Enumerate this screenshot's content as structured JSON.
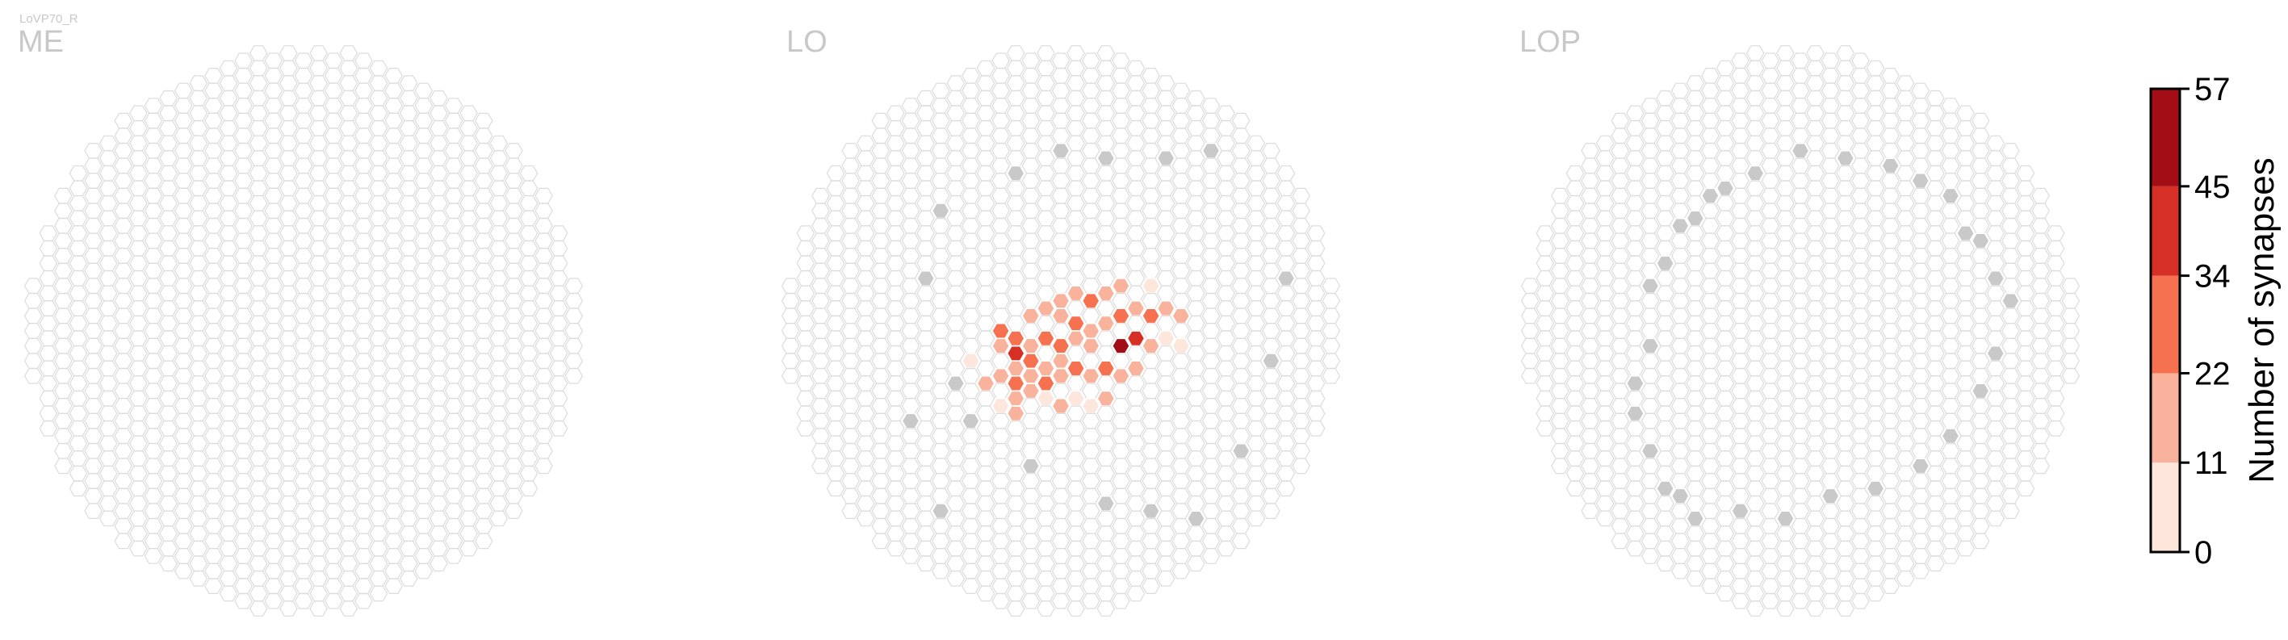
{
  "neuron_name": "LoVP70_R",
  "chart_data": {
    "type": "heatmap",
    "grid": "hexagonal",
    "panels": [
      {
        "title": "ME",
        "hot_columns": [],
        "edge_columns": []
      },
      {
        "title": "LO",
        "hot_columns": [
          [
            -6,
            2,
            11
          ],
          [
            -5,
            3,
            22
          ],
          [
            -4,
            0,
            34
          ],
          [
            -4,
            1,
            22
          ],
          [
            -4,
            3,
            22
          ],
          [
            -4,
            5,
            11
          ],
          [
            -3,
            0,
            34
          ],
          [
            -3,
            1,
            45
          ],
          [
            -3,
            2,
            22
          ],
          [
            -3,
            3,
            34
          ],
          [
            -3,
            4,
            22
          ],
          [
            -3,
            5,
            22
          ],
          [
            -2,
            -1,
            22
          ],
          [
            -2,
            1,
            22
          ],
          [
            -2,
            2,
            34
          ],
          [
            -2,
            3,
            22
          ],
          [
            -2,
            4,
            22
          ],
          [
            -1,
            -2,
            22
          ],
          [
            -1,
            0,
            34
          ],
          [
            -1,
            2,
            22
          ],
          [
            -1,
            3,
            34
          ],
          [
            -1,
            4,
            11
          ],
          [
            0,
            -2,
            22
          ],
          [
            0,
            -1,
            22
          ],
          [
            0,
            1,
            34
          ],
          [
            0,
            2,
            22
          ],
          [
            0,
            3,
            22
          ],
          [
            0,
            5,
            22
          ],
          [
            1,
            -3,
            22
          ],
          [
            1,
            -1,
            34
          ],
          [
            1,
            0,
            22
          ],
          [
            1,
            2,
            34
          ],
          [
            1,
            4,
            11
          ],
          [
            2,
            -2,
            34
          ],
          [
            2,
            0,
            22
          ],
          [
            2,
            1,
            22
          ],
          [
            2,
            3,
            22
          ],
          [
            2,
            5,
            11
          ],
          [
            3,
            -3,
            22
          ],
          [
            3,
            -1,
            22
          ],
          [
            3,
            2,
            34
          ],
          [
            3,
            4,
            22
          ],
          [
            4,
            -3,
            22
          ],
          [
            4,
            -1,
            34
          ],
          [
            4,
            1,
            57
          ],
          [
            4,
            3,
            22
          ],
          [
            5,
            -2,
            22
          ],
          [
            5,
            0,
            45
          ],
          [
            5,
            2,
            22
          ],
          [
            6,
            -3,
            11
          ],
          [
            6,
            -1,
            34
          ],
          [
            6,
            1,
            22
          ],
          [
            7,
            -2,
            22
          ],
          [
            7,
            0,
            11
          ],
          [
            8,
            -1,
            22
          ],
          [
            8,
            1,
            11
          ]
        ],
        "edge_columns": [
          [
            -8,
            -8
          ],
          [
            -9,
            -4
          ],
          [
            -7,
            3
          ],
          [
            -6,
            6
          ],
          [
            -2,
            9
          ],
          [
            3,
            11
          ],
          [
            6,
            12
          ],
          [
            9,
            12
          ],
          [
            -10,
            6
          ],
          [
            -8,
            12
          ],
          [
            7,
            -12
          ],
          [
            10,
            -12
          ],
          [
            15,
            -4
          ],
          [
            14,
            2
          ],
          [
            12,
            8
          ],
          [
            -3,
            -11
          ],
          [
            0,
            -12
          ],
          [
            3,
            -12
          ]
        ]
      },
      {
        "title": "LOP",
        "hot_columns": [],
        "edge_columns": [
          [
            -10,
            -3
          ],
          [
            -9,
            -5
          ],
          [
            -8,
            -7
          ],
          [
            -7,
            -8
          ],
          [
            -6,
            -9
          ],
          [
            -5,
            -10
          ],
          [
            -10,
            1
          ],
          [
            -11,
            3
          ],
          [
            -11,
            5
          ],
          [
            -10,
            8
          ],
          [
            -9,
            10
          ],
          [
            -8,
            11
          ],
          [
            -7,
            12
          ],
          [
            -4,
            12
          ],
          [
            -1,
            12
          ],
          [
            2,
            11
          ],
          [
            5,
            10
          ],
          [
            8,
            9
          ],
          [
            10,
            7
          ],
          [
            12,
            4
          ],
          [
            13,
            1
          ],
          [
            14,
            -2
          ],
          [
            13,
            -4
          ],
          [
            12,
            -6
          ],
          [
            11,
            -7
          ],
          [
            10,
            -9
          ],
          [
            8,
            -10
          ],
          [
            6,
            -11
          ],
          [
            3,
            -12
          ],
          [
            0,
            -12
          ],
          [
            -3,
            -11
          ]
        ]
      }
    ],
    "missing_color": "#c9c9c9",
    "colorbar": {
      "label": "Number of synapses",
      "ticks": [
        "0",
        "11",
        "22",
        "34",
        "45",
        "57"
      ],
      "bins": [
        0,
        11,
        22,
        34,
        45,
        57
      ],
      "colors": [
        "#fde7dd",
        "#f9b39d",
        "#f5714f",
        "#d62f26",
        "#a30e16"
      ]
    }
  }
}
